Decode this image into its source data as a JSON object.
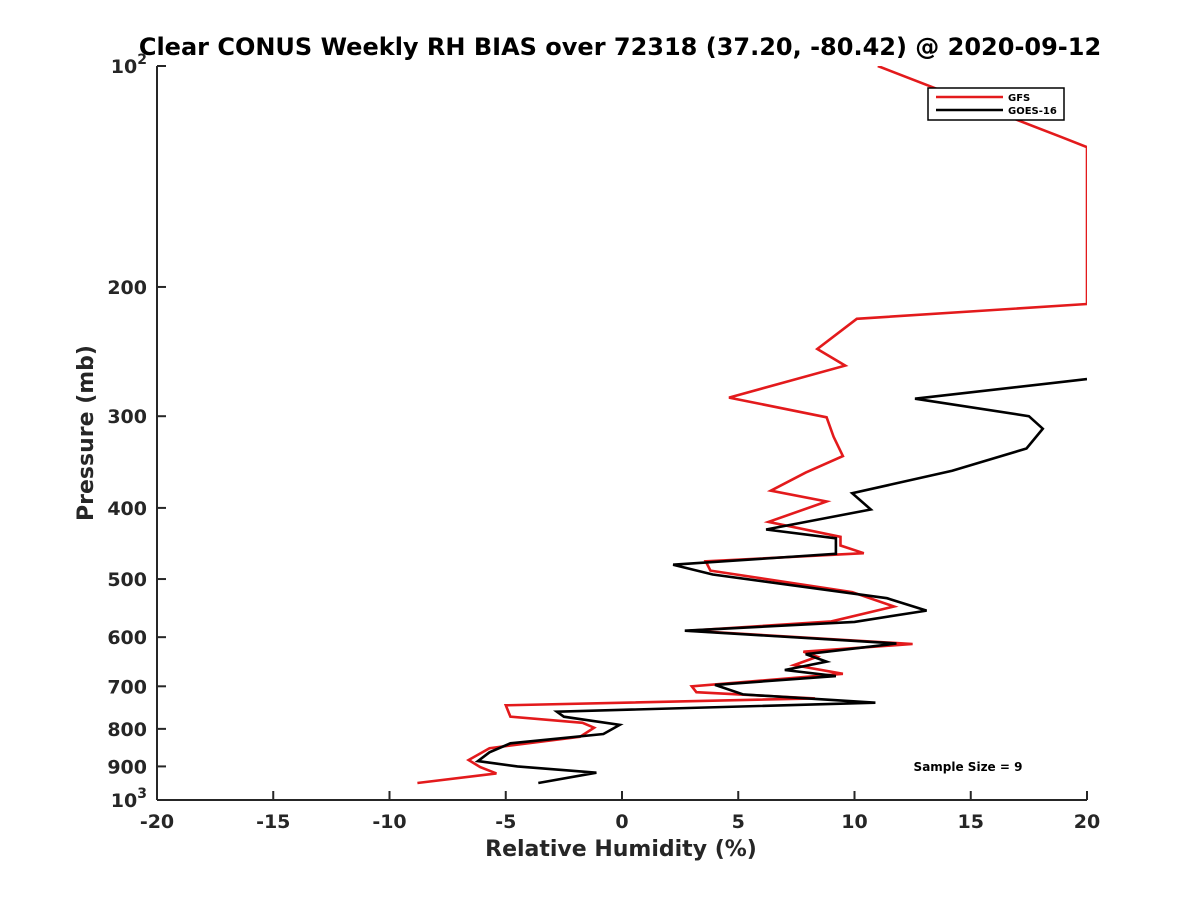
{
  "chart_data": {
    "type": "line",
    "title": "Clear CONUS Weekly RH BIAS over 72318 (37.20, -80.42) @ 2020-09-12",
    "xlabel": "Relative Humidity (%)",
    "ylabel": "Pressure (mb)",
    "xlim": [
      -20,
      20
    ],
    "ylim": [
      100,
      1000
    ],
    "y_scale": "log",
    "y_reversed": true,
    "grid": false,
    "legend_position": "top-right",
    "x_ticks": [
      -20,
      -15,
      -10,
      -5,
      0,
      5,
      10,
      15,
      20
    ],
    "x_tick_labels": [
      "-20",
      "-15",
      "-10",
      "-5",
      "0",
      "5",
      "10",
      "15",
      "20"
    ],
    "y_ticks": [
      {
        "value": 100,
        "label": "10",
        "exp": "2"
      },
      {
        "value": 200,
        "label": "200",
        "exp": ""
      },
      {
        "value": 300,
        "label": "300",
        "exp": ""
      },
      {
        "value": 400,
        "label": "400",
        "exp": ""
      },
      {
        "value": 500,
        "label": "500",
        "exp": ""
      },
      {
        "value": 600,
        "label": "600",
        "exp": ""
      },
      {
        "value": 700,
        "label": "700",
        "exp": ""
      },
      {
        "value": 800,
        "label": "800",
        "exp": ""
      },
      {
        "value": 900,
        "label": "900",
        "exp": ""
      },
      {
        "value": 1000,
        "label": "10",
        "exp": "3"
      }
    ],
    "series": [
      {
        "name": "GFS",
        "color": "#e31a1c",
        "points": [
          [
            11,
            100
          ],
          [
            18.9,
            125
          ],
          [
            20,
            129
          ],
          [
            20,
            211
          ],
          [
            10.1,
            221
          ],
          [
            8.4,
            243
          ],
          [
            9.6,
            256
          ],
          [
            4.6,
            283
          ],
          [
            8.8,
            301
          ],
          [
            9.1,
            320
          ],
          [
            9.5,
            340
          ],
          [
            7.9,
            358
          ],
          [
            6.4,
            379
          ],
          [
            8.8,
            392
          ],
          [
            6.3,
            418
          ],
          [
            9.4,
            438
          ],
          [
            9.4,
            450
          ],
          [
            10.4,
            461
          ],
          [
            3.6,
            473
          ],
          [
            3.8,
            487
          ],
          [
            9.9,
            521
          ],
          [
            11.7,
            545
          ],
          [
            9.0,
            571
          ],
          [
            2.9,
            588
          ],
          [
            12.5,
            613
          ],
          [
            7.8,
            628
          ],
          [
            8.4,
            638
          ],
          [
            7.4,
            655
          ],
          [
            9.5,
            673
          ],
          [
            3.0,
            700
          ],
          [
            3.2,
            713
          ],
          [
            8.3,
            727
          ],
          [
            -5.0,
            743
          ],
          [
            -4.8,
            770
          ],
          [
            -1.7,
            785
          ],
          [
            -1.2,
            797
          ],
          [
            -1.8,
            820
          ],
          [
            -5.7,
            850
          ],
          [
            -6.6,
            882
          ],
          [
            -6.1,
            902
          ],
          [
            -5.4,
            920
          ],
          [
            -8.8,
            948
          ]
        ]
      },
      {
        "name": "GOES-16",
        "color": "#000000",
        "points": [
          [
            20,
            267
          ],
          [
            12.6,
            284
          ],
          [
            17.5,
            300
          ],
          [
            18.1,
            312
          ],
          [
            17.4,
            332
          ],
          [
            14.2,
            356
          ],
          [
            9.9,
            382
          ],
          [
            10.7,
            402
          ],
          [
            6.2,
            428
          ],
          [
            9.2,
            440
          ],
          [
            9.2,
            462
          ],
          [
            2.2,
            478
          ],
          [
            3.9,
            493
          ],
          [
            11.4,
            531
          ],
          [
            13.1,
            552
          ],
          [
            10.0,
            572
          ],
          [
            2.7,
            588
          ],
          [
            11.8,
            612
          ],
          [
            7.9,
            633
          ],
          [
            8.8,
            648
          ],
          [
            7.0,
            665
          ],
          [
            9.2,
            678
          ],
          [
            4.0,
            697
          ],
          [
            5.2,
            718
          ],
          [
            10.9,
            737
          ],
          [
            -2.8,
            758
          ],
          [
            -2.5,
            770
          ],
          [
            -0.1,
            790
          ],
          [
            -0.8,
            813
          ],
          [
            -4.8,
            837
          ],
          [
            -5.7,
            861
          ],
          [
            -6.2,
            885
          ],
          [
            -4.5,
            900
          ],
          [
            -1.1,
            918
          ],
          [
            -3.6,
            948
          ]
        ]
      }
    ],
    "annotation": "Sample Size = 9"
  }
}
